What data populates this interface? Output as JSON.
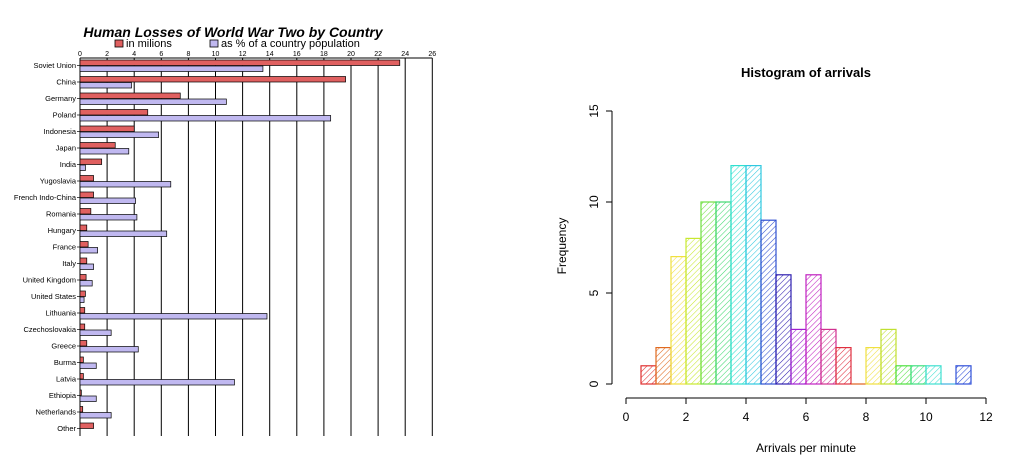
{
  "chart_data": [
    {
      "type": "bar",
      "orientation": "horizontal",
      "title": "Human Losses of World War Two by Country",
      "xlim": [
        0,
        26
      ],
      "xticks": [
        0,
        2,
        4,
        6,
        8,
        10,
        12,
        14,
        16,
        18,
        20,
        22,
        24,
        26
      ],
      "legend_position": "top",
      "grid": true,
      "categories": [
        "Soviet Union",
        "China",
        "Germany",
        "Poland",
        "Indonesia",
        "Japan",
        "India",
        "Yugoslavia",
        "French Indo-China",
        "Romania",
        "Hungary",
        "France",
        "Italy",
        "United Kingdom",
        "United States",
        "Lithuania",
        "Czechoslovakia",
        "Greece",
        "Burma",
        "Latvia",
        "Ethiopia",
        "Netherlands",
        "Other"
      ],
      "series": [
        {
          "name": "in milions",
          "color": "#e06060",
          "values": [
            23.6,
            19.6,
            7.4,
            5.0,
            4.0,
            2.6,
            1.6,
            1.0,
            1.0,
            0.8,
            0.5,
            0.6,
            0.5,
            0.45,
            0.4,
            0.35,
            0.35,
            0.5,
            0.25,
            0.25,
            0.1,
            0.2,
            1.0
          ]
        },
        {
          "name": "as % of a country population",
          "color": "#c0b8f0",
          "values": [
            13.5,
            3.8,
            10.8,
            18.5,
            5.8,
            3.6,
            0.4,
            6.7,
            4.1,
            4.2,
            6.4,
            1.3,
            1.0,
            0.9,
            0.3,
            13.8,
            2.3,
            4.3,
            1.2,
            11.4,
            1.2,
            2.3,
            0
          ]
        }
      ]
    },
    {
      "type": "bar",
      "subtype": "histogram",
      "title": "Histogram of arrivals",
      "xlabel": "Arrivals per minute",
      "ylabel": "Frequency",
      "xlim": [
        0,
        12
      ],
      "ylim": [
        0,
        15
      ],
      "xticks": [
        0,
        2,
        4,
        6,
        8,
        10,
        12
      ],
      "yticks": [
        0,
        5,
        10,
        15
      ],
      "bin_width": 0.5,
      "bin_starts": [
        0.5,
        1.0,
        1.5,
        2.0,
        2.5,
        3.0,
        3.5,
        4.0,
        4.5,
        5.0,
        5.5,
        6.0,
        6.5,
        7.0,
        7.5,
        8.0,
        8.5,
        9.0,
        9.5,
        10.0,
        10.5,
        11.0
      ],
      "values": [
        1,
        2,
        7,
        8,
        10,
        10,
        12,
        12,
        9,
        6,
        3,
        6,
        3,
        2,
        0,
        2,
        3,
        1,
        1,
        1,
        0,
        1
      ],
      "colors": [
        "#e03030",
        "#e06a20",
        "#f0e040",
        "#c8e830",
        "#70e040",
        "#40d870",
        "#30e0d0",
        "#30c8e0",
        "#3050d0",
        "#3020b0",
        "#a020d0",
        "#c020c0",
        "#d03090",
        "#e03040",
        "#e06020",
        "#f0e040",
        "#c0e030",
        "#50e040",
        "#40e080",
        "#40e0d0",
        "#40b0e0",
        "#3050d8"
      ]
    }
  ]
}
